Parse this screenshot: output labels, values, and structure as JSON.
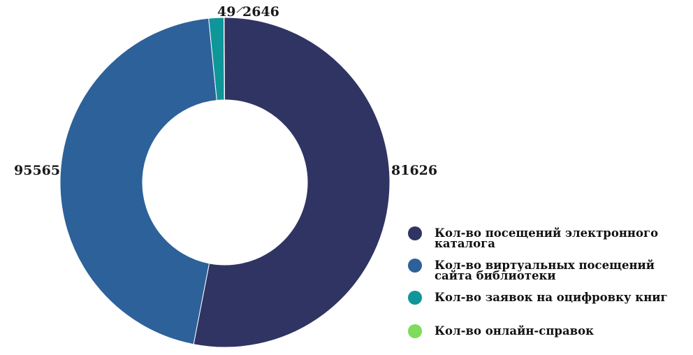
{
  "chart_data": {
    "type": "pie",
    "donut": true,
    "title": "",
    "slices": [
      {
        "label": "Кол-во посещений электронного каталога",
        "value": 95565,
        "color": "#303463"
      },
      {
        "label": "Кол-во виртуальных посещений сайта библиотеки",
        "value": 81626,
        "color": "#2d6199"
      },
      {
        "label": "Кол-во заявок на оцифровку книг",
        "value": 2646,
        "color": "#0f9698"
      },
      {
        "label": "Кол-во онлайн-справок",
        "value": 49,
        "color": "#7edb5c"
      }
    ],
    "data_labels": [
      "95565",
      "81626",
      "2646",
      "49"
    ],
    "legend": {
      "position": "bottom-right",
      "items": [
        {
          "line1": "Кол-во посещений электронного",
          "line2": "каталога",
          "color": "#303463"
        },
        {
          "line1": "Кол-во виртуальных посещений",
          "line2": "сайта библиотеки",
          "color": "#2d6199"
        },
        {
          "line1": "Кол-во заявок на оцифровку книг",
          "line2": "",
          "color": "#0f9698"
        },
        {
          "line1": "Кол-во онлайн-справок",
          "line2": "",
          "color": "#7edb5c"
        }
      ]
    }
  }
}
